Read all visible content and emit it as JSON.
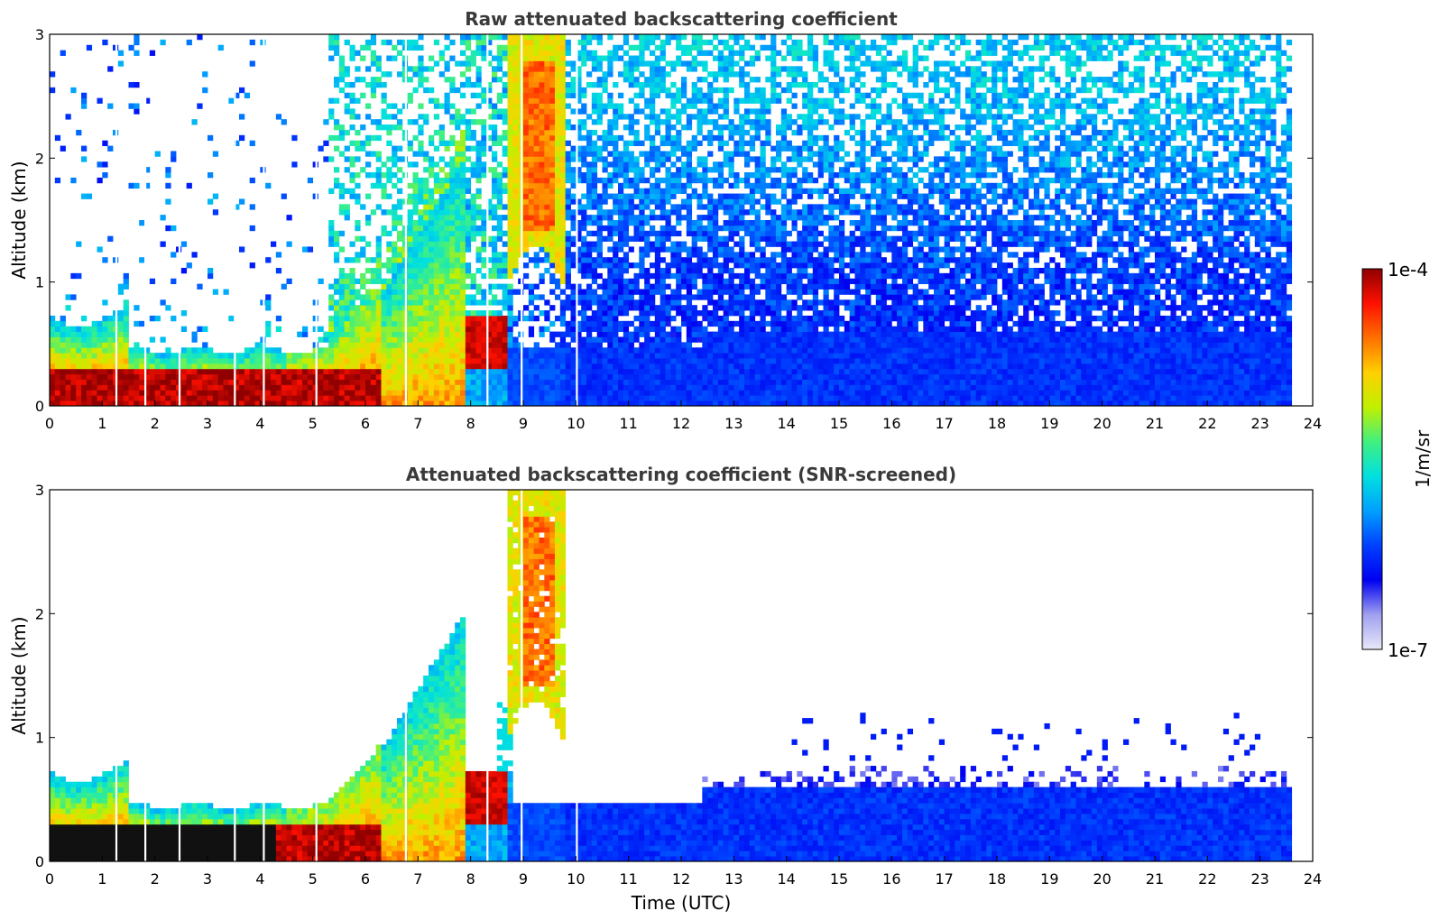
{
  "chart_data": [
    {
      "type": "heatmap",
      "title": "Raw attenuated backscattering coefficient",
      "xlabel": "",
      "ylabel": "Altitude (km)",
      "xlim": [
        0,
        24
      ],
      "ylim": [
        0,
        3
      ],
      "xticks": [
        "0",
        "1",
        "2",
        "3",
        "4",
        "5",
        "6",
        "7",
        "8",
        "9",
        "10",
        "11",
        "12",
        "13",
        "14",
        "15",
        "16",
        "17",
        "18",
        "19",
        "20",
        "21",
        "22",
        "23",
        "24"
      ],
      "yticks": [
        "0",
        "1",
        "2",
        "3"
      ],
      "data_end_time": 23.6,
      "colorscale": "log",
      "features": [
        {
          "t0": 0,
          "t1": 7.5,
          "top_km": 0.45,
          "level": 0.97,
          "desc": "strong aerosol layer"
        },
        {
          "t0": 6.5,
          "t1": 7.9,
          "top_km": 2.1,
          "level": 0.65,
          "desc": "rising aerosol plume"
        },
        {
          "t0": 8.7,
          "t1": 9.8,
          "bottom_km": 1.0,
          "top_km": 3.0,
          "level": 0.78,
          "desc": "elevated layer"
        },
        {
          "t0": 10,
          "t1": 23.6,
          "top_km": 0.5,
          "level": 0.25,
          "desc": "weak boundary layer"
        }
      ]
    },
    {
      "type": "heatmap",
      "title": "Attenuated backscattering coefficient (SNR-screened)",
      "xlabel": "Time (UTC)",
      "ylabel": "Altitude (km)",
      "xlim": [
        0,
        24
      ],
      "ylim": [
        0,
        3
      ],
      "xticks": [
        "0",
        "1",
        "2",
        "3",
        "4",
        "5",
        "6",
        "7",
        "8",
        "9",
        "10",
        "11",
        "12",
        "13",
        "14",
        "15",
        "16",
        "17",
        "18",
        "19",
        "20",
        "21",
        "22",
        "23",
        "24"
      ],
      "yticks": [
        "0",
        "1",
        "2",
        "3"
      ],
      "data_end_time": 23.6,
      "colorscale": "log"
    }
  ],
  "colorbar": {
    "label": "1/m/sr",
    "max_label": "1e-4",
    "min_label": "1e-7",
    "colors": [
      "#e8e8f8",
      "#a0a0f0",
      "#0000f0",
      "#0040ff",
      "#00a0ff",
      "#00e0e0",
      "#40f080",
      "#c0f000",
      "#ffd000",
      "#ff7000",
      "#ff1000",
      "#900000"
    ]
  }
}
